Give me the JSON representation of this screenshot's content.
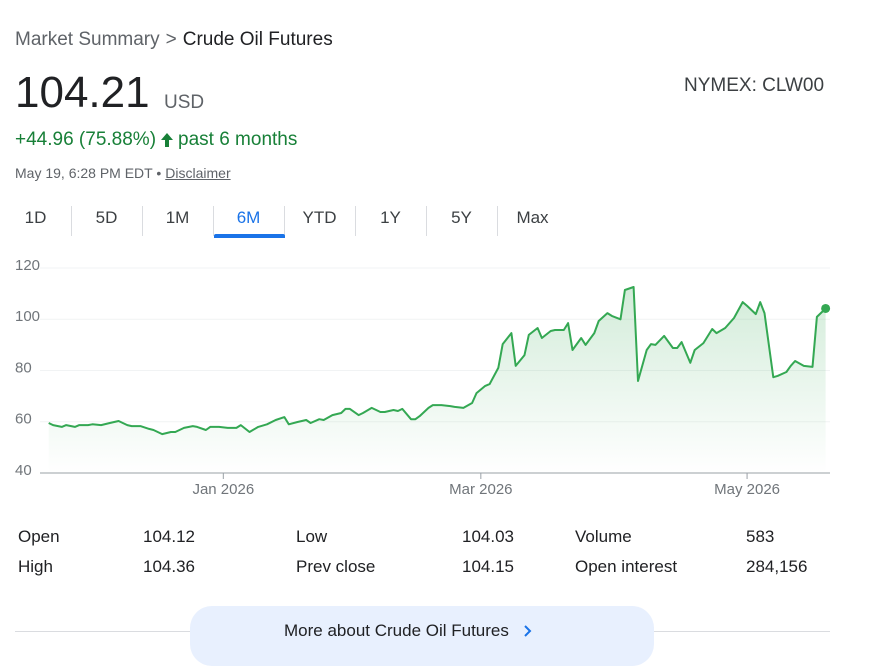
{
  "breadcrumb": [
    "Market Summary",
    ">",
    "Crude Oil Futures"
  ],
  "price": "104.21",
  "currency": "USD",
  "exchange": "NYMEX: CLW00",
  "change": "+44.96 (75.88%)",
  "change_period": "past 6 months",
  "timestamp": "May 19, 6:28 PM EDT •",
  "disclaimer": "Disclaimer",
  "tabs": [
    "1D",
    "5D",
    "1M",
    "6M",
    "YTD",
    "1Y",
    "5Y",
    "Max"
  ],
  "selected_tab": 3,
  "chart_data": {
    "type": "line",
    "x": [
      -40,
      -39,
      -37,
      -36,
      -34,
      -33,
      -31,
      -30,
      -28,
      -26,
      -24,
      -22,
      -21,
      -19,
      -17,
      -16,
      -14,
      -12,
      -11,
      -9,
      -7,
      -6,
      -4,
      -3,
      -1,
      1,
      3,
      4,
      6,
      8,
      10,
      12,
      14,
      15,
      17,
      19,
      20,
      22,
      23,
      25,
      27,
      28,
      29,
      31,
      32,
      34,
      36,
      37,
      39,
      40,
      41,
      43,
      44,
      45,
      47,
      48,
      50,
      52,
      53,
      55,
      57,
      58,
      60,
      61,
      63,
      64,
      66,
      67,
      69,
      70,
      72,
      73,
      75,
      76,
      78,
      79,
      80,
      82,
      83,
      85,
      86,
      88,
      89,
      91,
      92,
      94,
      95,
      97,
      98,
      99,
      101,
      103,
      104,
      105,
      107,
      108,
      110,
      112,
      113,
      115,
      117,
      119,
      120,
      122,
      123,
      124,
      126,
      127,
      129,
      130,
      131,
      133,
      135,
      136,
      138
    ],
    "series": [
      {
        "color": "#34a853",
        "values": [
          59.5,
          58.7,
          58,
          58.7,
          58,
          58.7,
          58.7,
          59,
          58.7,
          59.5,
          60.3,
          58.7,
          58.3,
          58.3,
          57.2,
          56.8,
          55.2,
          56,
          56,
          57.6,
          58.3,
          58,
          56.8,
          58,
          58,
          57.6,
          57.6,
          58.7,
          56,
          58,
          59,
          60.7,
          61.8,
          59,
          59.9,
          60.7,
          59.5,
          61,
          60.7,
          62.6,
          63.4,
          65,
          65,
          62.6,
          63.4,
          65.4,
          63.8,
          63.8,
          64.6,
          64.2,
          65,
          61,
          61,
          62.2,
          65.4,
          66.5,
          66.5,
          66.1,
          65.8,
          65.4,
          67.3,
          71.2,
          74,
          74.7,
          81,
          90.3,
          94.6,
          81.8,
          86,
          93.9,
          96.6,
          92.7,
          95.4,
          95.8,
          95.8,
          98.5,
          88,
          92.7,
          90,
          94.6,
          99.3,
          102.4,
          101.3,
          100,
          111.4,
          112.6,
          75.9,
          88,
          90.3,
          90,
          93.5,
          88.8,
          88.8,
          91.1,
          83,
          88,
          90.7,
          96.2,
          94.6,
          96.6,
          100.5,
          106.7,
          105.2,
          102,
          106.7,
          102.4,
          77.4,
          77.9,
          79.4,
          81.8,
          83.7,
          81.8,
          81.4,
          100.9,
          104.2
        ]
      }
    ],
    "xlim": [
      -42,
      139
    ],
    "xticks": [
      {
        "value": 0,
        "label": "Jan 2026"
      },
      {
        "value": 59,
        "label": "Mar 2026"
      },
      {
        "value": 120,
        "label": "May 2026"
      }
    ],
    "ylim": [
      40,
      120
    ],
    "yticks": [
      40,
      60,
      80,
      100,
      120
    ],
    "grid": true
  },
  "stats": [
    [
      {
        "label": "Open",
        "value": "104.12"
      },
      {
        "label": "Low",
        "value": "104.03"
      },
      {
        "label": "Volume",
        "value": "583"
      }
    ],
    [
      {
        "label": "High",
        "value": "104.36"
      },
      {
        "label": "Prev close",
        "value": "104.15"
      },
      {
        "label": "Open interest",
        "value": "284,156"
      }
    ]
  ],
  "more_button": "More about Crude Oil Futures"
}
